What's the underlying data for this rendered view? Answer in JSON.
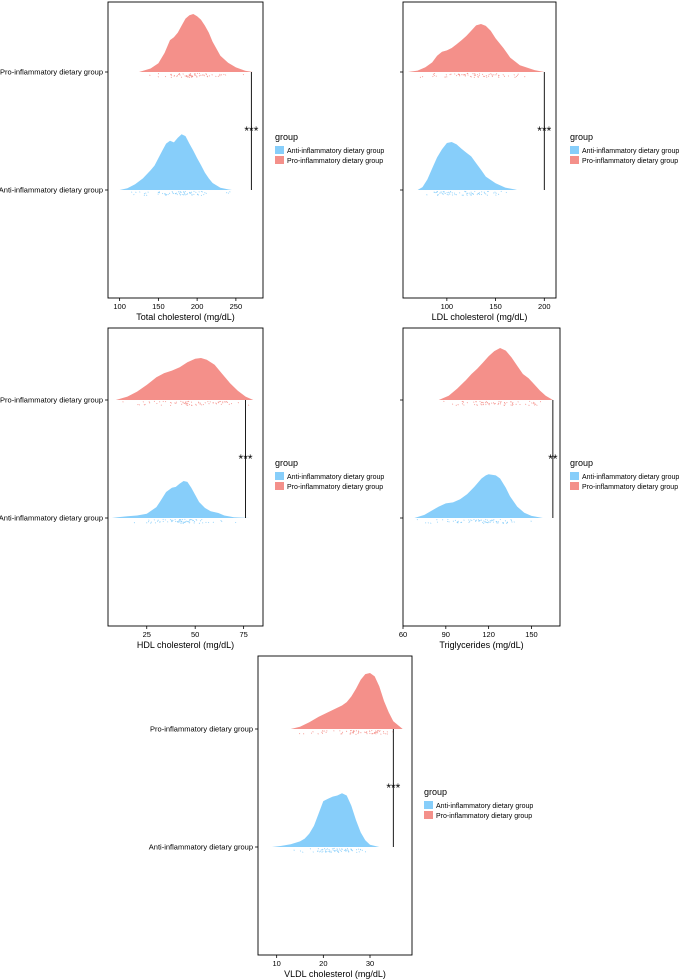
{
  "colors": {
    "anti": "#87CEFA",
    "pro": "#F4908A",
    "frame": "#000000"
  },
  "legend": {
    "title": "group",
    "items": [
      "Anti-inflammatory dietary group",
      "Pro-inflammatory dietary group"
    ]
  },
  "groups": {
    "pro": "Pro-inflammatory dietary group",
    "anti": "Anti-inflammatory dietary group"
  },
  "chart_data": [
    {
      "type": "density",
      "xlabel": "Total cholesterol (mg/dL)",
      "xlim": [
        85,
        285
      ],
      "xticks": [
        100,
        150,
        200,
        250
      ],
      "significance": "***",
      "bracket_x": 270,
      "pro": {
        "x": [
          125,
          140,
          150,
          158,
          165,
          170,
          175,
          180,
          185,
          190,
          195,
          200,
          205,
          210,
          215,
          220,
          225,
          230,
          240,
          250,
          262,
          272
        ],
        "y": [
          0,
          0.06,
          0.15,
          0.33,
          0.55,
          0.6,
          0.68,
          0.8,
          0.92,
          0.98,
          1,
          0.96,
          0.9,
          0.8,
          0.68,
          0.52,
          0.4,
          0.28,
          0.16,
          0.08,
          0.02,
          0
        ]
      },
      "anti": {
        "x": [
          100,
          110,
          120,
          130,
          140,
          145,
          150,
          155,
          160,
          165,
          170,
          175,
          180,
          185,
          190,
          195,
          200,
          205,
          210,
          215,
          220,
          230,
          240,
          245
        ],
        "y": [
          0,
          0.03,
          0.1,
          0.2,
          0.34,
          0.42,
          0.55,
          0.68,
          0.8,
          0.85,
          0.82,
          0.9,
          0.96,
          0.93,
          0.8,
          0.68,
          0.55,
          0.43,
          0.3,
          0.2,
          0.12,
          0.04,
          0.01,
          0
        ]
      }
    },
    {
      "type": "density",
      "xlabel": "LDL cholesterol (mg/dL)",
      "xlim": [
        55,
        212
      ],
      "xticks": [
        100,
        150,
        200
      ],
      "significance": "***",
      "bracket_x": 200,
      "pro": {
        "x": [
          60,
          70,
          78,
          85,
          90,
          95,
          100,
          105,
          110,
          115,
          120,
          125,
          130,
          135,
          140,
          145,
          150,
          158,
          165,
          175,
          190,
          200
        ],
        "y": [
          0,
          0.03,
          0.1,
          0.2,
          0.34,
          0.42,
          0.45,
          0.5,
          0.58,
          0.66,
          0.75,
          0.86,
          0.97,
          1,
          0.96,
          0.86,
          0.7,
          0.5,
          0.3,
          0.14,
          0.04,
          0
        ]
      },
      "anti": {
        "x": [
          70,
          75,
          80,
          85,
          90,
          95,
          100,
          105,
          110,
          115,
          120,
          125,
          130,
          135,
          140,
          150,
          160,
          170,
          172
        ],
        "y": [
          0,
          0.06,
          0.22,
          0.45,
          0.68,
          0.85,
          0.98,
          1,
          0.95,
          0.86,
          0.78,
          0.7,
          0.56,
          0.42,
          0.28,
          0.14,
          0.05,
          0.01,
          0
        ]
      }
    },
    {
      "type": "density",
      "xlabel": "HDL cholesterol (mg/dL)",
      "xlim": [
        5,
        85
      ],
      "xticks": [
        25,
        50,
        75
      ],
      "significance": "***",
      "bracket_x": 76,
      "pro": {
        "x": [
          9,
          15,
          20,
          25,
          30,
          34,
          38,
          42,
          46,
          50,
          53,
          56,
          60,
          64,
          68,
          72,
          76,
          80
        ],
        "y": [
          0,
          0.08,
          0.2,
          0.36,
          0.54,
          0.64,
          0.7,
          0.78,
          0.9,
          0.98,
          1,
          0.96,
          0.84,
          0.62,
          0.4,
          0.22,
          0.08,
          0
        ]
      },
      "anti": {
        "x": [
          7,
          10,
          15,
          20,
          25,
          30,
          32,
          35,
          38,
          40,
          42,
          44,
          46,
          48,
          50,
          52,
          55,
          58,
          62,
          65,
          70,
          78
        ],
        "y": [
          0,
          0.02,
          0.04,
          0.06,
          0.1,
          0.26,
          0.4,
          0.62,
          0.72,
          0.74,
          0.82,
          0.88,
          0.86,
          0.72,
          0.55,
          0.38,
          0.24,
          0.16,
          0.12,
          0.06,
          0.02,
          0
        ]
      }
    },
    {
      "type": "density",
      "xlabel": "Triglycerides (mg/dL)",
      "xlim": [
        60,
        170
      ],
      "xticks": [
        60,
        90,
        120,
        150
      ],
      "significance": "**",
      "bracket_x": 165,
      "pro": {
        "x": [
          85,
          92,
          98,
          104,
          108,
          112,
          116,
          120,
          124,
          128,
          132,
          136,
          140,
          144,
          148,
          152,
          156,
          160,
          165
        ],
        "y": [
          0,
          0.08,
          0.22,
          0.38,
          0.5,
          0.6,
          0.72,
          0.84,
          0.94,
          1,
          0.95,
          0.82,
          0.66,
          0.5,
          0.42,
          0.3,
          0.18,
          0.08,
          0
        ]
      },
      "anti": {
        "x": [
          68,
          75,
          80,
          85,
          90,
          95,
          100,
          105,
          110,
          115,
          118,
          120,
          125,
          128,
          132,
          135,
          140,
          145,
          150,
          158
        ],
        "y": [
          0,
          0.06,
          0.14,
          0.22,
          0.28,
          0.3,
          0.36,
          0.46,
          0.6,
          0.76,
          0.82,
          0.84,
          0.82,
          0.76,
          0.58,
          0.42,
          0.22,
          0.1,
          0.04,
          0
        ]
      }
    },
    {
      "type": "density",
      "xlabel": "VLDL cholesterol (mg/dL)",
      "xlim": [
        6,
        39
      ],
      "xticks": [
        10,
        20,
        30
      ],
      "significance": "***",
      "bracket_x": 35,
      "pro": {
        "x": [
          13,
          15,
          17,
          19,
          21,
          23,
          24,
          25,
          26,
          27,
          28,
          29,
          30,
          31,
          32,
          33,
          34,
          35,
          37
        ],
        "y": [
          0,
          0.04,
          0.12,
          0.22,
          0.3,
          0.38,
          0.42,
          0.48,
          0.58,
          0.72,
          0.88,
          0.98,
          1,
          0.94,
          0.76,
          0.5,
          0.3,
          0.14,
          0
        ]
      },
      "anti": {
        "x": [
          9,
          11,
          13,
          15,
          16,
          17,
          18,
          19,
          20,
          21,
          22,
          23,
          24,
          25,
          26,
          27,
          28,
          29,
          30,
          32
        ],
        "y": [
          0,
          0.02,
          0.05,
          0.1,
          0.15,
          0.24,
          0.38,
          0.6,
          0.82,
          0.86,
          0.9,
          0.92,
          0.96,
          0.92,
          0.74,
          0.48,
          0.26,
          0.12,
          0.04,
          0
        ]
      }
    }
  ]
}
